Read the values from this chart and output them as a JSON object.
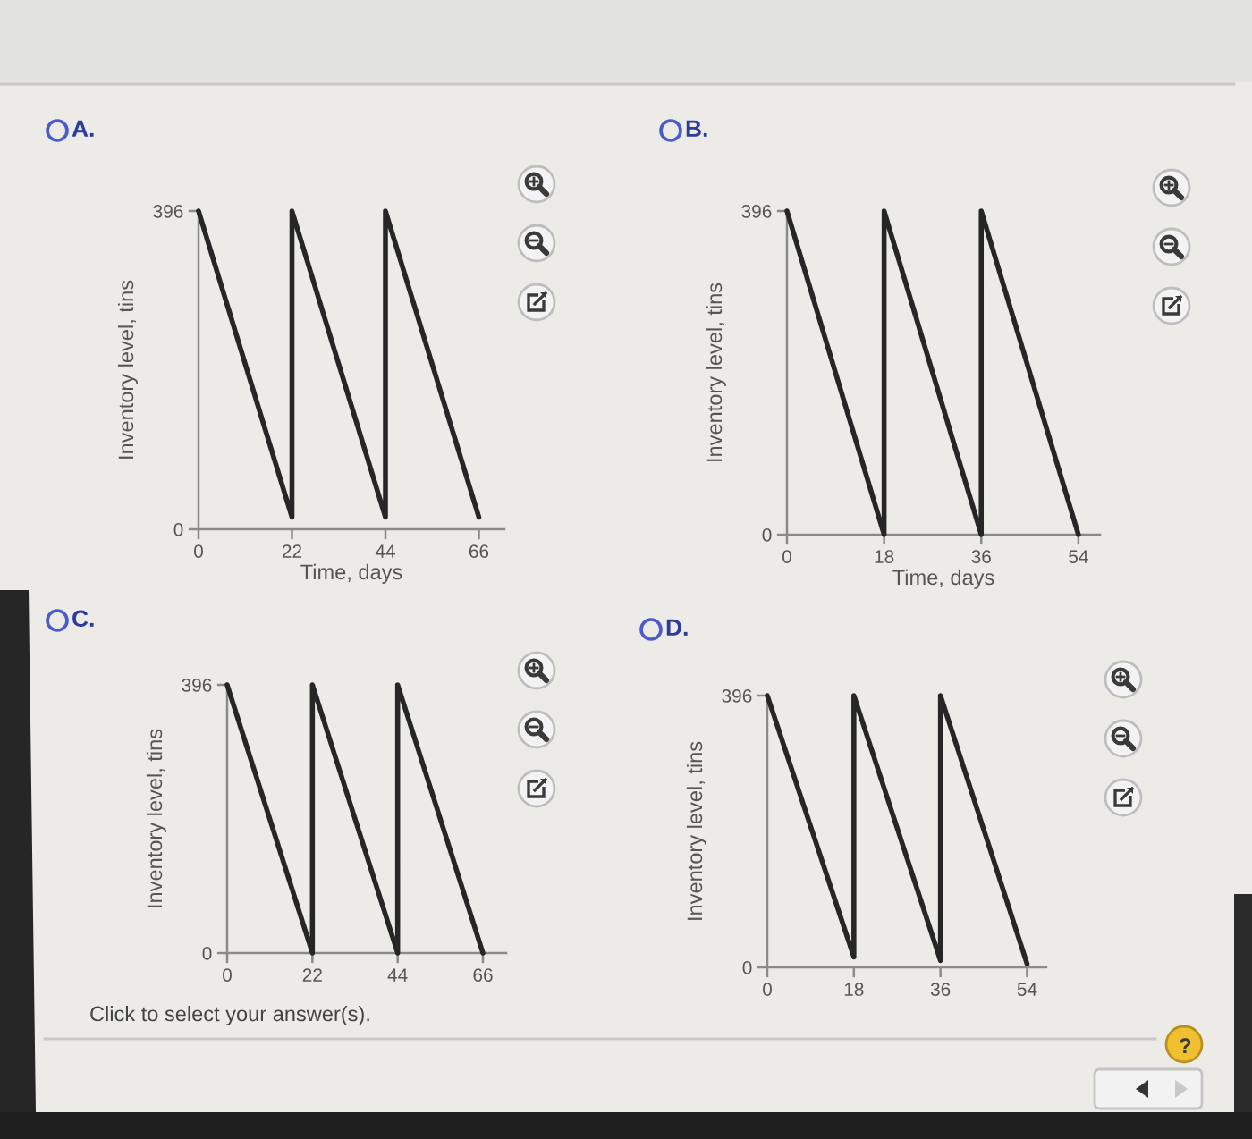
{
  "chart_data": [
    {
      "type": "line",
      "title": "A.",
      "xlabel": "Time, days",
      "ylabel": "Inventory level, tins",
      "x": [
        0,
        22,
        22,
        44,
        44,
        66
      ],
      "series": [
        {
          "color": "#262626",
          "values": [
            396,
            15,
            396,
            15,
            396,
            15
          ]
        }
      ],
      "xlim": [
        0,
        72
      ],
      "ylim": [
        0,
        396
      ],
      "xticks": [
        0,
        22,
        44,
        66
      ],
      "yticks": [
        0,
        396
      ]
    },
    {
      "type": "line",
      "title": "B.",
      "xlabel": "Time, days",
      "ylabel": "Inventory level, tins",
      "x": [
        0,
        18,
        18,
        36,
        36,
        54
      ],
      "series": [
        {
          "color": "#262626",
          "values": [
            396,
            0,
            396,
            0,
            396,
            0
          ]
        }
      ],
      "xlim": [
        0,
        58
      ],
      "ylim": [
        0,
        396
      ],
      "xticks": [
        0,
        18,
        36,
        54
      ],
      "yticks": [
        0,
        396
      ]
    },
    {
      "type": "line",
      "title": "C.",
      "ylabel": "Inventory level, tins",
      "x": [
        0,
        22,
        22,
        44,
        44,
        66
      ],
      "series": [
        {
          "color": "#262626",
          "values": [
            396,
            0,
            396,
            0,
            396,
            0
          ]
        }
      ],
      "xlim": [
        0,
        72
      ],
      "ylim": [
        0,
        396
      ],
      "xticks": [
        0,
        22,
        44,
        66
      ],
      "yticks": [
        0,
        396
      ],
      "annotations": [
        "Click to select your answer(s)."
      ]
    },
    {
      "type": "line",
      "title": "D.",
      "ylabel": "Inventory level, tins",
      "x": [
        0,
        18,
        18,
        36,
        36,
        54
      ],
      "series": [
        {
          "color": "#262626",
          "values": [
            396,
            15,
            396,
            10,
            396,
            5
          ]
        }
      ],
      "xlim": [
        0,
        58
      ],
      "ylim": [
        0,
        396
      ],
      "xticks": [
        0,
        18,
        36,
        54
      ],
      "yticks": [
        0,
        396
      ]
    }
  ]
}
